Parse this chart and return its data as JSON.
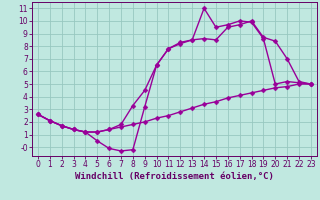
{
  "title": "",
  "xlabel": "Windchill (Refroidissement éolien,°C)",
  "ylabel": "",
  "bg_color": "#c0e8e0",
  "grid_color": "#98c8c0",
  "line_color": "#990099",
  "spine_color": "#660066",
  "xlim": [
    -0.5,
    23.5
  ],
  "ylim": [
    -0.7,
    11.5
  ],
  "xticks": [
    0,
    1,
    2,
    3,
    4,
    5,
    6,
    7,
    8,
    9,
    10,
    11,
    12,
    13,
    14,
    15,
    16,
    17,
    18,
    19,
    20,
    21,
    22,
    23
  ],
  "yticks": [
    0,
    1,
    2,
    3,
    4,
    5,
    6,
    7,
    8,
    9,
    10,
    11
  ],
  "ytick_labels": [
    "-0",
    "1",
    "2",
    "3",
    "4",
    "5",
    "6",
    "7",
    "8",
    "9",
    "10",
    "11"
  ],
  "series1_x": [
    0,
    1,
    2,
    3,
    4,
    5,
    6,
    7,
    8,
    9,
    10,
    11,
    12,
    13,
    14,
    15,
    16,
    17,
    18,
    19,
    20,
    21,
    22,
    23
  ],
  "series1_y": [
    2.6,
    2.1,
    1.7,
    1.4,
    1.2,
    0.5,
    -0.1,
    -0.3,
    -0.2,
    3.2,
    6.5,
    7.8,
    8.2,
    8.5,
    8.6,
    8.5,
    9.5,
    9.7,
    10.0,
    8.7,
    8.4,
    7.0,
    5.2,
    5.0
  ],
  "series2_x": [
    0,
    1,
    2,
    3,
    4,
    5,
    6,
    7,
    8,
    9,
    10,
    11,
    12,
    13,
    14,
    15,
    16,
    17,
    18,
    19,
    20,
    21,
    22,
    23
  ],
  "series2_y": [
    2.6,
    2.1,
    1.7,
    1.4,
    1.2,
    1.2,
    1.4,
    1.6,
    1.8,
    2.0,
    2.3,
    2.5,
    2.8,
    3.1,
    3.4,
    3.6,
    3.9,
    4.1,
    4.3,
    4.5,
    4.7,
    4.8,
    5.0,
    5.0
  ],
  "series3_x": [
    0,
    1,
    2,
    3,
    4,
    5,
    6,
    7,
    8,
    9,
    10,
    11,
    12,
    13,
    14,
    15,
    16,
    17,
    18,
    19,
    20,
    21,
    22,
    23
  ],
  "series3_y": [
    2.6,
    2.1,
    1.7,
    1.4,
    1.2,
    1.2,
    1.4,
    1.8,
    3.3,
    4.5,
    6.5,
    7.8,
    8.3,
    8.5,
    11.0,
    9.5,
    9.7,
    10.0,
    9.9,
    8.6,
    5.0,
    5.2,
    5.1,
    5.0
  ],
  "marker_size": 2.5,
  "line_width": 1.0,
  "xlabel_fontsize": 6.5,
  "tick_fontsize": 5.5
}
